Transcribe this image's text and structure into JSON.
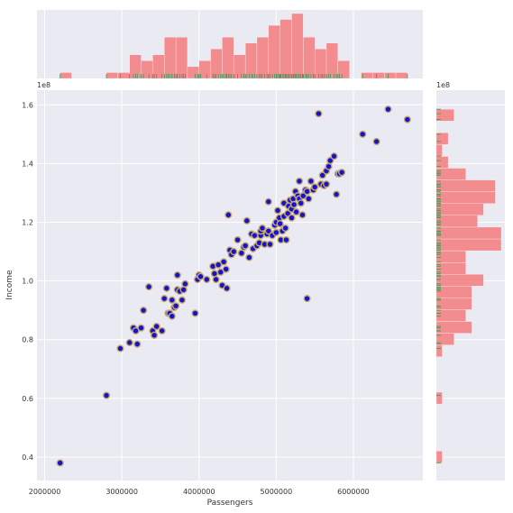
{
  "chart_data": {
    "type": "scatter",
    "xlabel": "Passengers",
    "ylabel": "Income",
    "y_offset_label": "1e8",
    "y_marginal_offset_label": "1e8",
    "xlim": [
      1900000,
      6900000
    ],
    "ylim": [
      32000000,
      165000000
    ],
    "x_tick_labels": [
      "2000000",
      "3000000",
      "4000000",
      "5000000",
      "6000000"
    ],
    "x_ticks": [
      2000000,
      3000000,
      4000000,
      5000000,
      6000000
    ],
    "y_tick_labels": [
      "0.4",
      "0.6",
      "0.8",
      "1.0",
      "1.2",
      "1.4",
      "1.6"
    ],
    "y_ticks": [
      40000000,
      60000000,
      80000000,
      100000000,
      120000000,
      140000000,
      160000000
    ],
    "grid": true,
    "colors": {
      "background": "#eaeaf2",
      "grid": "#ffffff",
      "point_fill": "#1414c8",
      "point_edge": "#c8a86e",
      "hist": "#f4888a",
      "rug": "#3a9a5a"
    },
    "points": [
      [
        2200000,
        38000000
      ],
      [
        2800000,
        61000000
      ],
      [
        2980000,
        77000000
      ],
      [
        3100000,
        79000000
      ],
      [
        3150000,
        84000000
      ],
      [
        3180000,
        83000000
      ],
      [
        3200000,
        78500000
      ],
      [
        3250000,
        84000000
      ],
      [
        3280000,
        90000000
      ],
      [
        3350000,
        98000000
      ],
      [
        3400000,
        83000000
      ],
      [
        3420000,
        81500000
      ],
      [
        3450000,
        84500000
      ],
      [
        3520000,
        83000000
      ],
      [
        3550000,
        94000000
      ],
      [
        3580000,
        97500000
      ],
      [
        3600000,
        89000000
      ],
      [
        3620000,
        89000000
      ],
      [
        3650000,
        93500000
      ],
      [
        3650000,
        88000000
      ],
      [
        3680000,
        91000000
      ],
      [
        3700000,
        91500000
      ],
      [
        3720000,
        102000000
      ],
      [
        3720000,
        97000000
      ],
      [
        3750000,
        96500000
      ],
      [
        3780000,
        93500000
      ],
      [
        3800000,
        97000000
      ],
      [
        3820000,
        99000000
      ],
      [
        3950000,
        89000000
      ],
      [
        3980000,
        100500000
      ],
      [
        4000000,
        102000000
      ],
      [
        4020000,
        101500000
      ],
      [
        4100000,
        100500000
      ],
      [
        4180000,
        105000000
      ],
      [
        4200000,
        102500000
      ],
      [
        4220000,
        100500000
      ],
      [
        4250000,
        105500000
      ],
      [
        4280000,
        103000000
      ],
      [
        4300000,
        98500000
      ],
      [
        4320000,
        106500000
      ],
      [
        4350000,
        104000000
      ],
      [
        4360000,
        97500000
      ],
      [
        4380000,
        122500000
      ],
      [
        4400000,
        110500000
      ],
      [
        4420000,
        109000000
      ],
      [
        4450000,
        110000000
      ],
      [
        4500000,
        114000000
      ],
      [
        4550000,
        109500000
      ],
      [
        4580000,
        111500000
      ],
      [
        4600000,
        112000000
      ],
      [
        4620000,
        120500000
      ],
      [
        4650000,
        108000000
      ],
      [
        4680000,
        116000000
      ],
      [
        4700000,
        111000000
      ],
      [
        4720000,
        115500000
      ],
      [
        4750000,
        112000000
      ],
      [
        4780000,
        113000000
      ],
      [
        4800000,
        115500000
      ],
      [
        4800000,
        117000000
      ],
      [
        4820000,
        118000000
      ],
      [
        4850000,
        112500000
      ],
      [
        4880000,
        116000000
      ],
      [
        4900000,
        117000000
      ],
      [
        4900000,
        127000000
      ],
      [
        4920000,
        112500000
      ],
      [
        4950000,
        115500000
      ],
      [
        4980000,
        119000000
      ],
      [
        5000000,
        120000000
      ],
      [
        5000000,
        116500000
      ],
      [
        5020000,
        124000000
      ],
      [
        5040000,
        121500000
      ],
      [
        5050000,
        119500000
      ],
      [
        5060000,
        114000000
      ],
      [
        5080000,
        117000000
      ],
      [
        5100000,
        122000000
      ],
      [
        5100000,
        126500000
      ],
      [
        5120000,
        118000000
      ],
      [
        5130000,
        114000000
      ],
      [
        5150000,
        123000000
      ],
      [
        5160000,
        125500000
      ],
      [
        5180000,
        127500000
      ],
      [
        5200000,
        124500000
      ],
      [
        5200000,
        121500000
      ],
      [
        5220000,
        128000000
      ],
      [
        5230000,
        126000000
      ],
      [
        5250000,
        130500000
      ],
      [
        5260000,
        123500000
      ],
      [
        5280000,
        129000000
      ],
      [
        5300000,
        134000000
      ],
      [
        5300000,
        128000000
      ],
      [
        5320000,
        126500000
      ],
      [
        5340000,
        122500000
      ],
      [
        5350000,
        129000000
      ],
      [
        5380000,
        131000000
      ],
      [
        5400000,
        94000000
      ],
      [
        5400000,
        130500000
      ],
      [
        5420000,
        128000000
      ],
      [
        5450000,
        134000000
      ],
      [
        5480000,
        131000000
      ],
      [
        5500000,
        132000000
      ],
      [
        5550000,
        157000000
      ],
      [
        5580000,
        133000000
      ],
      [
        5600000,
        136000000
      ],
      [
        5620000,
        132500000
      ],
      [
        5650000,
        133000000
      ],
      [
        5650000,
        137500000
      ],
      [
        5680000,
        139000000
      ],
      [
        5700000,
        141000000
      ],
      [
        5750000,
        142500000
      ],
      [
        5780000,
        129500000
      ],
      [
        5800000,
        136500000
      ],
      [
        5820000,
        136500000
      ],
      [
        5850000,
        137000000
      ],
      [
        6120000,
        150000000
      ],
      [
        6300000,
        147500000
      ],
      [
        6450000,
        158500000
      ],
      [
        6700000,
        155000000
      ]
    ]
  }
}
